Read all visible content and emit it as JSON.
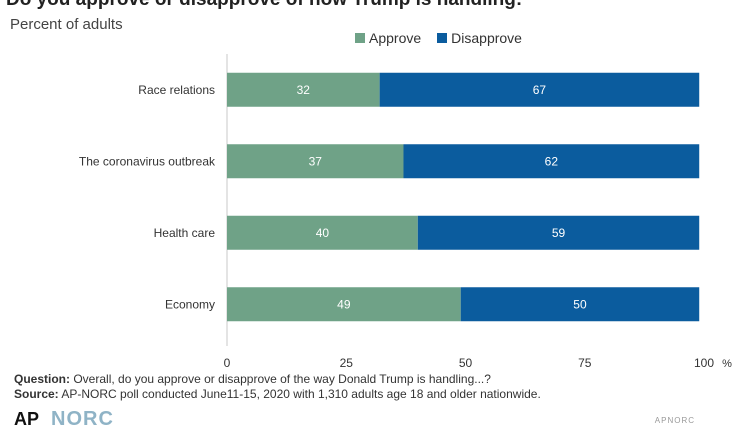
{
  "title": "Do you approve or disapprove of how Trump is handling:",
  "subtitle": "Percent of adults",
  "colors": {
    "approve": "#6fa287",
    "disapprove": "#0b5c9e",
    "axis": "#c8c8c8"
  },
  "chart_data": {
    "type": "bar",
    "orientation": "horizontal",
    "stacked": true,
    "categories": [
      "Race relations",
      "The coronavirus outbreak",
      "Health care",
      "Economy"
    ],
    "series": [
      {
        "name": "Approve",
        "values": [
          32,
          37,
          40,
          49
        ]
      },
      {
        "name": "Disapprove",
        "values": [
          67,
          62,
          59,
          50
        ]
      }
    ],
    "xlim": [
      0,
      100
    ],
    "xticks": [
      "0",
      "25",
      "50",
      "75",
      "100"
    ],
    "xunit": "%",
    "legend": "top"
  },
  "notes": {
    "question_label": "Question:",
    "question_text": "Overall, do you approve or disapprove of the way Donald Trump is handling...?",
    "source_label": "Source:",
    "source_text": "AP-NORC poll conducted June11-15, 2020 with 1,310 adults age 18 and older nationwide."
  },
  "logos": {
    "ap": "AP",
    "norc": "NORC"
  },
  "footer_right": "APNORC"
}
